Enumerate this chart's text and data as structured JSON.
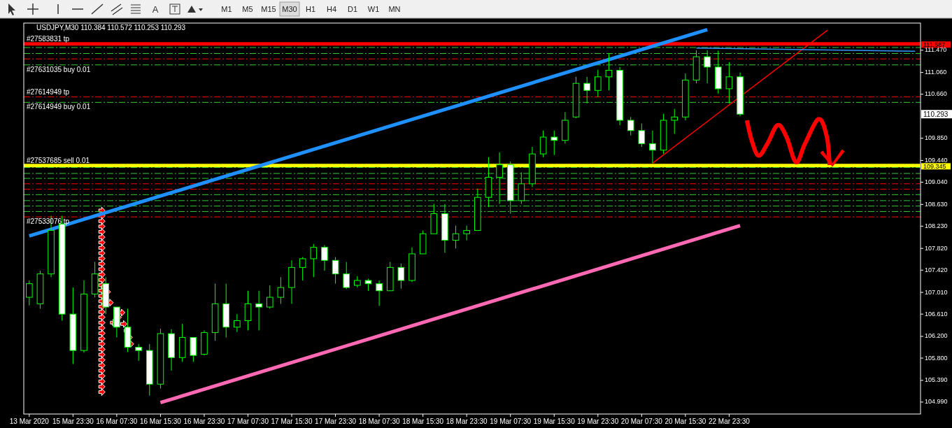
{
  "chart_data": {
    "type": "candlestick",
    "title": "USDJPY,M30  110.384 110.572 110.253 110.293",
    "color": "#00ff00",
    "categories": [
      "13 Mar 2020",
      null,
      null,
      null,
      "15 Mar 23:30",
      null,
      null,
      null,
      "16 Mar 07:30",
      null,
      null,
      null,
      "16 Mar 15:30",
      null,
      null,
      null,
      "16 Mar 23:30",
      null,
      null,
      null,
      "17 Mar 07:30",
      null,
      null,
      null,
      "17 Mar 15:30",
      null,
      null,
      null,
      "17 Mar 23:30",
      null,
      null,
      null,
      "18 Mar 07:30",
      null,
      null,
      null,
      "18 Mar 15:30",
      null,
      null,
      null,
      "18 Mar 23:30",
      null,
      null,
      null,
      "19 Mar 07:30",
      null,
      null,
      null,
      "19 Mar 15:30",
      null,
      null,
      null,
      "19 Mar 23:30",
      null,
      null,
      null,
      "20 Mar 07:30",
      null,
      null,
      null,
      "20 Mar 15:30",
      null,
      null,
      null,
      "22 Mar 23:30",
      null,
      null,
      null,
      null,
      null,
      null,
      null,
      null,
      null,
      null,
      null,
      null,
      null,
      null,
      null,
      null,
      null
    ],
    "ohlc": [
      [
        106.92,
        107.23,
        106.77,
        107.17
      ],
      [
        106.8,
        107.41,
        106.71,
        107.35
      ],
      [
        107.35,
        108.42,
        107.29,
        108.15
      ],
      [
        108.27,
        108.42,
        106.49,
        106.61
      ],
      [
        106.61,
        107.1,
        105.69,
        105.94
      ],
      [
        105.94,
        107.23,
        105.9,
        106.98
      ],
      [
        106.98,
        107.57,
        106.92,
        107.35
      ],
      [
        107.17,
        107.29,
        106.61,
        106.74
      ],
      [
        106.74,
        106.74,
        106.18,
        106.37
      ],
      [
        106.37,
        106.71,
        105.91,
        106.0
      ],
      [
        106.0,
        106.06,
        105.75,
        105.94
      ],
      [
        105.94,
        106.06,
        105.11,
        105.32
      ],
      [
        105.32,
        106.34,
        105.24,
        106.25
      ],
      [
        106.25,
        106.33,
        105.57,
        105.81
      ],
      [
        105.81,
        106.43,
        105.73,
        106.18
      ],
      [
        106.18,
        106.18,
        105.73,
        105.85
      ],
      [
        105.87,
        106.31,
        105.85,
        106.27
      ],
      [
        106.27,
        107.17,
        106.12,
        106.8
      ],
      [
        106.8,
        107.17,
        106.18,
        106.37
      ],
      [
        106.37,
        106.61,
        106.28,
        106.49
      ],
      [
        106.49,
        107.04,
        106.31,
        106.8
      ],
      [
        106.8,
        107.04,
        106.31,
        106.74
      ],
      [
        106.74,
        107.14,
        106.71,
        106.92
      ],
      [
        106.92,
        107.29,
        106.8,
        107.1
      ],
      [
        107.1,
        107.6,
        106.8,
        107.47
      ],
      [
        107.47,
        107.66,
        107.23,
        107.63
      ],
      [
        107.63,
        107.9,
        107.29,
        107.84
      ],
      [
        107.84,
        107.88,
        107.41,
        107.6
      ],
      [
        107.6,
        107.66,
        107.17,
        107.35
      ],
      [
        107.35,
        107.57,
        107.07,
        107.1
      ],
      [
        107.14,
        107.31,
        107.1,
        107.23
      ],
      [
        107.23,
        107.26,
        107.04,
        107.17
      ],
      [
        107.17,
        107.23,
        106.76,
        107.04
      ],
      [
        107.04,
        107.57,
        107.04,
        107.47
      ],
      [
        107.47,
        107.54,
        107.08,
        107.23
      ],
      [
        107.23,
        107.84,
        107.2,
        107.72
      ],
      [
        107.72,
        108.15,
        107.72,
        108.09
      ],
      [
        108.09,
        108.64,
        108.09,
        108.46
      ],
      [
        108.46,
        108.64,
        107.74,
        107.97
      ],
      [
        107.97,
        108.24,
        107.82,
        108.09
      ],
      [
        108.09,
        108.24,
        107.97,
        108.15
      ],
      [
        108.15,
        108.92,
        108.15,
        108.76
      ],
      [
        108.76,
        109.5,
        108.58,
        109.13
      ],
      [
        109.13,
        109.59,
        108.64,
        109.36
      ],
      [
        109.36,
        109.42,
        108.46,
        108.7
      ],
      [
        108.7,
        109.22,
        108.64,
        109.01
      ],
      [
        109.01,
        109.69,
        108.95,
        109.56
      ],
      [
        109.56,
        109.99,
        109.5,
        109.87
      ],
      [
        109.87,
        109.99,
        109.54,
        109.81
      ],
      [
        109.81,
        110.33,
        109.75,
        110.18
      ],
      [
        110.24,
        110.98,
        110.22,
        110.86
      ],
      [
        110.86,
        110.98,
        110.49,
        110.73
      ],
      [
        110.73,
        111.11,
        110.61,
        110.98
      ],
      [
        110.98,
        111.41,
        110.73,
        111.1
      ],
      [
        111.1,
        111.16,
        110.09,
        110.18
      ],
      [
        110.18,
        110.24,
        109.9,
        109.99
      ],
      [
        109.99,
        110.12,
        109.69,
        109.75
      ],
      [
        109.75,
        109.99,
        109.39,
        109.63
      ],
      [
        109.63,
        110.3,
        109.56,
        110.18
      ],
      [
        110.18,
        110.39,
        109.93,
        110.24
      ],
      [
        110.24,
        111.04,
        110.18,
        110.92
      ],
      [
        110.92,
        111.47,
        110.86,
        111.35
      ],
      [
        111.35,
        111.47,
        110.86,
        111.16
      ],
      [
        111.16,
        111.46,
        110.67,
        110.76
      ],
      [
        110.76,
        111.25,
        110.49,
        110.98
      ],
      [
        110.98,
        111.06,
        110.253,
        110.293
      ],
      null,
      null,
      null,
      null,
      null,
      null,
      null,
      null,
      null,
      null,
      null,
      null,
      null,
      null,
      null,
      null
    ],
    "series": [
      {
        "type": "line",
        "color": "#1e90ff",
        "values": [
          108.05,
          null,
          null,
          null,
          null,
          null,
          null,
          null,
          null,
          null,
          null,
          null,
          null,
          null,
          null,
          null,
          null,
          null,
          null,
          null,
          null,
          null,
          null,
          null,
          null,
          null,
          null,
          null,
          null,
          null,
          null,
          null,
          null,
          null,
          null,
          null,
          null,
          null,
          null,
          null,
          null,
          null,
          null,
          null,
          null,
          null,
          null,
          null,
          null,
          null,
          null,
          null,
          null,
          null,
          null,
          null,
          null,
          null,
          null,
          null,
          null,
          null,
          111.85,
          null,
          null,
          null,
          null,
          null,
          null,
          null,
          null,
          null,
          null,
          null,
          null,
          null,
          null,
          null,
          null,
          null,
          null,
          null
        ]
      },
      {
        "type": "line",
        "color": "#ff69b4",
        "values": [
          null,
          null,
          null,
          null,
          null,
          null,
          null,
          null,
          null,
          null,
          null,
          null,
          104.98,
          null,
          null,
          null,
          null,
          null,
          null,
          null,
          null,
          null,
          null,
          null,
          null,
          null,
          null,
          null,
          null,
          null,
          null,
          null,
          null,
          null,
          null,
          null,
          null,
          null,
          null,
          null,
          null,
          null,
          null,
          null,
          null,
          null,
          null,
          null,
          null,
          null,
          null,
          null,
          null,
          null,
          null,
          null,
          null,
          null,
          null,
          null,
          null,
          null,
          null,
          null,
          null,
          108.24,
          null,
          null,
          null,
          null,
          null,
          null,
          null,
          null,
          null,
          null,
          null,
          null,
          null,
          null,
          null,
          null
        ]
      },
      {
        "type": "line",
        "color": "#ff0000",
        "values": [
          null,
          null,
          null,
          null,
          null,
          null,
          null,
          null,
          null,
          null,
          null,
          null,
          null,
          null,
          null,
          null,
          null,
          null,
          null,
          null,
          null,
          null,
          null,
          null,
          null,
          null,
          null,
          null,
          null,
          null,
          null,
          null,
          null,
          null,
          null,
          null,
          null,
          null,
          null,
          null,
          null,
          null,
          null,
          null,
          null,
          null,
          null,
          null,
          null,
          null,
          null,
          null,
          null,
          null,
          null,
          null,
          null,
          109.39,
          null,
          null,
          null,
          null,
          null,
          null,
          null,
          null,
          null,
          null,
          null,
          null,
          null,
          null,
          null,
          111.84,
          null,
          null,
          null,
          null,
          null,
          null,
          null,
          null
        ]
      },
      {
        "type": "line",
        "color": "#3399ff",
        "values": [
          null,
          null,
          null,
          null,
          null,
          null,
          null,
          null,
          null,
          null,
          null,
          null,
          null,
          null,
          null,
          null,
          null,
          null,
          null,
          null,
          null,
          null,
          null,
          null,
          null,
          null,
          null,
          null,
          null,
          null,
          null,
          null,
          null,
          null,
          null,
          null,
          null,
          null,
          null,
          null,
          null,
          null,
          null,
          null,
          null,
          null,
          null,
          null,
          null,
          null,
          null,
          null,
          null,
          null,
          null,
          null,
          null,
          null,
          null,
          null,
          null,
          111.51,
          null,
          null,
          null,
          null,
          null,
          null,
          null,
          null,
          null,
          null,
          null,
          null,
          null,
          null,
          null,
          null,
          null,
          null,
          null,
          111.45
        ]
      }
    ],
    "ylim": [
      104.77,
      111.97
    ],
    "yticks": [
      {
        "value": 111.47,
        "label": "111.470"
      },
      {
        "value": 111.06,
        "label": "111.060"
      },
      {
        "value": 110.66,
        "label": "110.660"
      },
      {
        "value": 109.85,
        "label": "109.850"
      },
      {
        "value": 109.44,
        "label": "109.440"
      },
      {
        "value": 109.04,
        "label": "109.040"
      },
      {
        "value": 108.63,
        "label": "108.630"
      },
      {
        "value": 108.23,
        "label": "108.230"
      },
      {
        "value": 107.82,
        "label": "107.820"
      },
      {
        "value": 107.42,
        "label": "107.420"
      },
      {
        "value": 107.01,
        "label": "107.010"
      },
      {
        "value": 106.61,
        "label": "106.610"
      },
      {
        "value": 106.2,
        "label": "106.200"
      },
      {
        "value": 105.8,
        "label": "105.800"
      },
      {
        "value": 105.39,
        "label": "105.390"
      },
      {
        "value": 104.99,
        "label": "104.990"
      }
    ],
    "ref_lines": [
      {
        "axis": "y",
        "value": 111.587,
        "label": "#27583831 tp",
        "color": "#ff0000",
        "line_style": "solid"
      },
      {
        "axis": "y",
        "value": 109.345,
        "label": "#27537685 sell 0.01",
        "color": "#ffff00",
        "line_style": "solid"
      },
      {
        "axis": "y",
        "value": 111.52,
        "label": null,
        "color": "#32cd32",
        "line_style": "dashed"
      },
      {
        "axis": "y",
        "value": 111.41,
        "label": null,
        "color": "#32cd32",
        "line_style": "dashed"
      },
      {
        "axis": "y",
        "value": 111.31,
        "label": null,
        "color": "#ff0000",
        "line_style": "dashed"
      },
      {
        "axis": "y",
        "value": 111.2,
        "label": "#27631035 buy 0.01",
        "color": "#32cd32",
        "line_style": "dashed"
      },
      {
        "axis": "y",
        "value": 110.61,
        "label": "#27614949 tp",
        "color": "#ff0000",
        "line_style": "dashed"
      },
      {
        "axis": "y",
        "value": 110.51,
        "label": "#27614949 buy 0.01",
        "color": "#32cd32",
        "line_style": "dashed"
      },
      {
        "axis": "y",
        "value": 109.31,
        "label": null,
        "color": "#32cd32",
        "line_style": "dashed"
      },
      {
        "axis": "y",
        "value": 109.2,
        "label": null,
        "color": "#32cd32",
        "line_style": "dashed"
      },
      {
        "axis": "y",
        "value": 109.11,
        "label": null,
        "color": "#32cd32",
        "line_style": "dashed"
      },
      {
        "axis": "y",
        "value": 109.01,
        "label": null,
        "color": "#ff0000",
        "line_style": "dashed"
      },
      {
        "axis": "y",
        "value": 108.91,
        "label": null,
        "color": "#ff0000",
        "line_style": "dashed"
      },
      {
        "axis": "y",
        "value": 108.81,
        "label": null,
        "color": "#32cd32",
        "line_style": "dashed"
      },
      {
        "axis": "y",
        "value": 108.7,
        "label": null,
        "color": "#32cd32",
        "line_style": "dashed"
      },
      {
        "axis": "y",
        "value": 108.6,
        "label": null,
        "color": "#32cd32",
        "line_style": "dashed"
      },
      {
        "axis": "y",
        "value": 108.5,
        "label": null,
        "color": "#32cd32",
        "line_style": "dashed"
      },
      {
        "axis": "y",
        "value": 108.4,
        "label": "#27533076 tp",
        "color": "#ff0000",
        "line_style": "dashed"
      }
    ],
    "annotations": [
      "M1",
      "M5",
      "M15",
      "M30",
      "H1",
      "H4",
      "D1",
      "W1",
      "MN",
      "A",
      "110.293",
      "111.587",
      "109.345"
    ]
  }
}
